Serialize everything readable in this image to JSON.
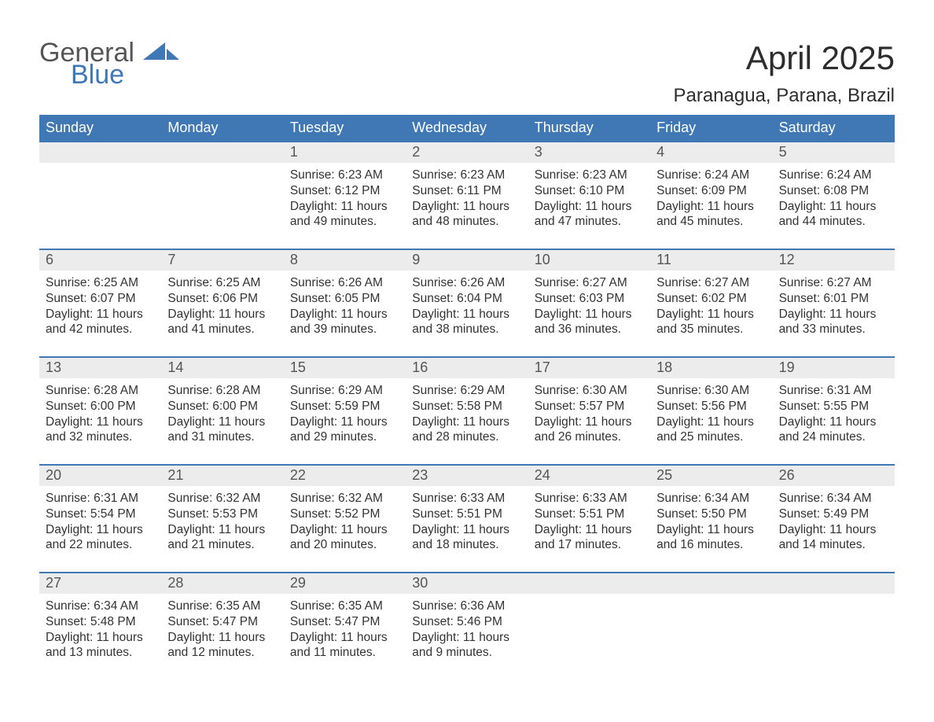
{
  "logo": {
    "word1": "General",
    "word2": "Blue",
    "color_general": "#555555",
    "color_blue": "#3f78b5",
    "sail_color": "#3f78b5"
  },
  "title": {
    "month": "April 2025",
    "location": "Paranagua, Parana, Brazil",
    "month_fontsize": 42,
    "location_fontsize": 24,
    "text_color": "#2d2d2d"
  },
  "calendar": {
    "type": "table",
    "header_bg": "#3f78b5",
    "header_text_color": "#ffffff",
    "row_separator_color": "#3f78b5",
    "daynum_strip_bg": "#ececec",
    "daynum_text_color": "#555555",
    "body_text_color": "#333333",
    "body_fontsize": 15.5,
    "header_fontsize": 18,
    "background_color": "#ffffff",
    "days_of_week": [
      "Sunday",
      "Monday",
      "Tuesday",
      "Wednesday",
      "Thursday",
      "Friday",
      "Saturday"
    ],
    "weeks": [
      [
        {
          "num": "",
          "sunrise": "",
          "sunset": "",
          "daylight": ""
        },
        {
          "num": "",
          "sunrise": "",
          "sunset": "",
          "daylight": ""
        },
        {
          "num": "1",
          "sunrise": "Sunrise: 6:23 AM",
          "sunset": "Sunset: 6:12 PM",
          "daylight": "Daylight: 11 hours and 49 minutes."
        },
        {
          "num": "2",
          "sunrise": "Sunrise: 6:23 AM",
          "sunset": "Sunset: 6:11 PM",
          "daylight": "Daylight: 11 hours and 48 minutes."
        },
        {
          "num": "3",
          "sunrise": "Sunrise: 6:23 AM",
          "sunset": "Sunset: 6:10 PM",
          "daylight": "Daylight: 11 hours and 47 minutes."
        },
        {
          "num": "4",
          "sunrise": "Sunrise: 6:24 AM",
          "sunset": "Sunset: 6:09 PM",
          "daylight": "Daylight: 11 hours and 45 minutes."
        },
        {
          "num": "5",
          "sunrise": "Sunrise: 6:24 AM",
          "sunset": "Sunset: 6:08 PM",
          "daylight": "Daylight: 11 hours and 44 minutes."
        }
      ],
      [
        {
          "num": "6",
          "sunrise": "Sunrise: 6:25 AM",
          "sunset": "Sunset: 6:07 PM",
          "daylight": "Daylight: 11 hours and 42 minutes."
        },
        {
          "num": "7",
          "sunrise": "Sunrise: 6:25 AM",
          "sunset": "Sunset: 6:06 PM",
          "daylight": "Daylight: 11 hours and 41 minutes."
        },
        {
          "num": "8",
          "sunrise": "Sunrise: 6:26 AM",
          "sunset": "Sunset: 6:05 PM",
          "daylight": "Daylight: 11 hours and 39 minutes."
        },
        {
          "num": "9",
          "sunrise": "Sunrise: 6:26 AM",
          "sunset": "Sunset: 6:04 PM",
          "daylight": "Daylight: 11 hours and 38 minutes."
        },
        {
          "num": "10",
          "sunrise": "Sunrise: 6:27 AM",
          "sunset": "Sunset: 6:03 PM",
          "daylight": "Daylight: 11 hours and 36 minutes."
        },
        {
          "num": "11",
          "sunrise": "Sunrise: 6:27 AM",
          "sunset": "Sunset: 6:02 PM",
          "daylight": "Daylight: 11 hours and 35 minutes."
        },
        {
          "num": "12",
          "sunrise": "Sunrise: 6:27 AM",
          "sunset": "Sunset: 6:01 PM",
          "daylight": "Daylight: 11 hours and 33 minutes."
        }
      ],
      [
        {
          "num": "13",
          "sunrise": "Sunrise: 6:28 AM",
          "sunset": "Sunset: 6:00 PM",
          "daylight": "Daylight: 11 hours and 32 minutes."
        },
        {
          "num": "14",
          "sunrise": "Sunrise: 6:28 AM",
          "sunset": "Sunset: 6:00 PM",
          "daylight": "Daylight: 11 hours and 31 minutes."
        },
        {
          "num": "15",
          "sunrise": "Sunrise: 6:29 AM",
          "sunset": "Sunset: 5:59 PM",
          "daylight": "Daylight: 11 hours and 29 minutes."
        },
        {
          "num": "16",
          "sunrise": "Sunrise: 6:29 AM",
          "sunset": "Sunset: 5:58 PM",
          "daylight": "Daylight: 11 hours and 28 minutes."
        },
        {
          "num": "17",
          "sunrise": "Sunrise: 6:30 AM",
          "sunset": "Sunset: 5:57 PM",
          "daylight": "Daylight: 11 hours and 26 minutes."
        },
        {
          "num": "18",
          "sunrise": "Sunrise: 6:30 AM",
          "sunset": "Sunset: 5:56 PM",
          "daylight": "Daylight: 11 hours and 25 minutes."
        },
        {
          "num": "19",
          "sunrise": "Sunrise: 6:31 AM",
          "sunset": "Sunset: 5:55 PM",
          "daylight": "Daylight: 11 hours and 24 minutes."
        }
      ],
      [
        {
          "num": "20",
          "sunrise": "Sunrise: 6:31 AM",
          "sunset": "Sunset: 5:54 PM",
          "daylight": "Daylight: 11 hours and 22 minutes."
        },
        {
          "num": "21",
          "sunrise": "Sunrise: 6:32 AM",
          "sunset": "Sunset: 5:53 PM",
          "daylight": "Daylight: 11 hours and 21 minutes."
        },
        {
          "num": "22",
          "sunrise": "Sunrise: 6:32 AM",
          "sunset": "Sunset: 5:52 PM",
          "daylight": "Daylight: 11 hours and 20 minutes."
        },
        {
          "num": "23",
          "sunrise": "Sunrise: 6:33 AM",
          "sunset": "Sunset: 5:51 PM",
          "daylight": "Daylight: 11 hours and 18 minutes."
        },
        {
          "num": "24",
          "sunrise": "Sunrise: 6:33 AM",
          "sunset": "Sunset: 5:51 PM",
          "daylight": "Daylight: 11 hours and 17 minutes."
        },
        {
          "num": "25",
          "sunrise": "Sunrise: 6:34 AM",
          "sunset": "Sunset: 5:50 PM",
          "daylight": "Daylight: 11 hours and 16 minutes."
        },
        {
          "num": "26",
          "sunrise": "Sunrise: 6:34 AM",
          "sunset": "Sunset: 5:49 PM",
          "daylight": "Daylight: 11 hours and 14 minutes."
        }
      ],
      [
        {
          "num": "27",
          "sunrise": "Sunrise: 6:34 AM",
          "sunset": "Sunset: 5:48 PM",
          "daylight": "Daylight: 11 hours and 13 minutes."
        },
        {
          "num": "28",
          "sunrise": "Sunrise: 6:35 AM",
          "sunset": "Sunset: 5:47 PM",
          "daylight": "Daylight: 11 hours and 12 minutes."
        },
        {
          "num": "29",
          "sunrise": "Sunrise: 6:35 AM",
          "sunset": "Sunset: 5:47 PM",
          "daylight": "Daylight: 11 hours and 11 minutes."
        },
        {
          "num": "30",
          "sunrise": "Sunrise: 6:36 AM",
          "sunset": "Sunset: 5:46 PM",
          "daylight": "Daylight: 11 hours and 9 minutes."
        },
        {
          "num": "",
          "sunrise": "",
          "sunset": "",
          "daylight": ""
        },
        {
          "num": "",
          "sunrise": "",
          "sunset": "",
          "daylight": ""
        },
        {
          "num": "",
          "sunrise": "",
          "sunset": "",
          "daylight": ""
        }
      ]
    ]
  }
}
